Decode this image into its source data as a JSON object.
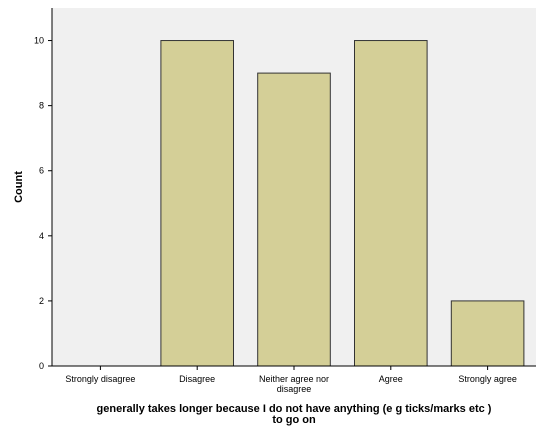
{
  "chart_data": {
    "type": "bar",
    "categories": [
      [
        "Strongly disagree"
      ],
      [
        "Disagree"
      ],
      [
        "Neither agree nor",
        "disagree"
      ],
      [
        "Agree"
      ],
      [
        "Strongly agree"
      ]
    ],
    "values": [
      0,
      10,
      9,
      10,
      2
    ],
    "xlabel": [
      "generally takes longer because I do not have anything (e g  ticks/marks etc )",
      "to go on"
    ],
    "ylabel": "Count",
    "ylim": [
      0,
      11
    ],
    "yticks": [
      0,
      2,
      4,
      6,
      8,
      10
    ],
    "grid": false,
    "legend": "none"
  },
  "colors": {
    "plot_background": "#f0f0f0",
    "bar_fill": "#d4cf97",
    "bar_stroke": "#333333",
    "axis": "#000000"
  }
}
